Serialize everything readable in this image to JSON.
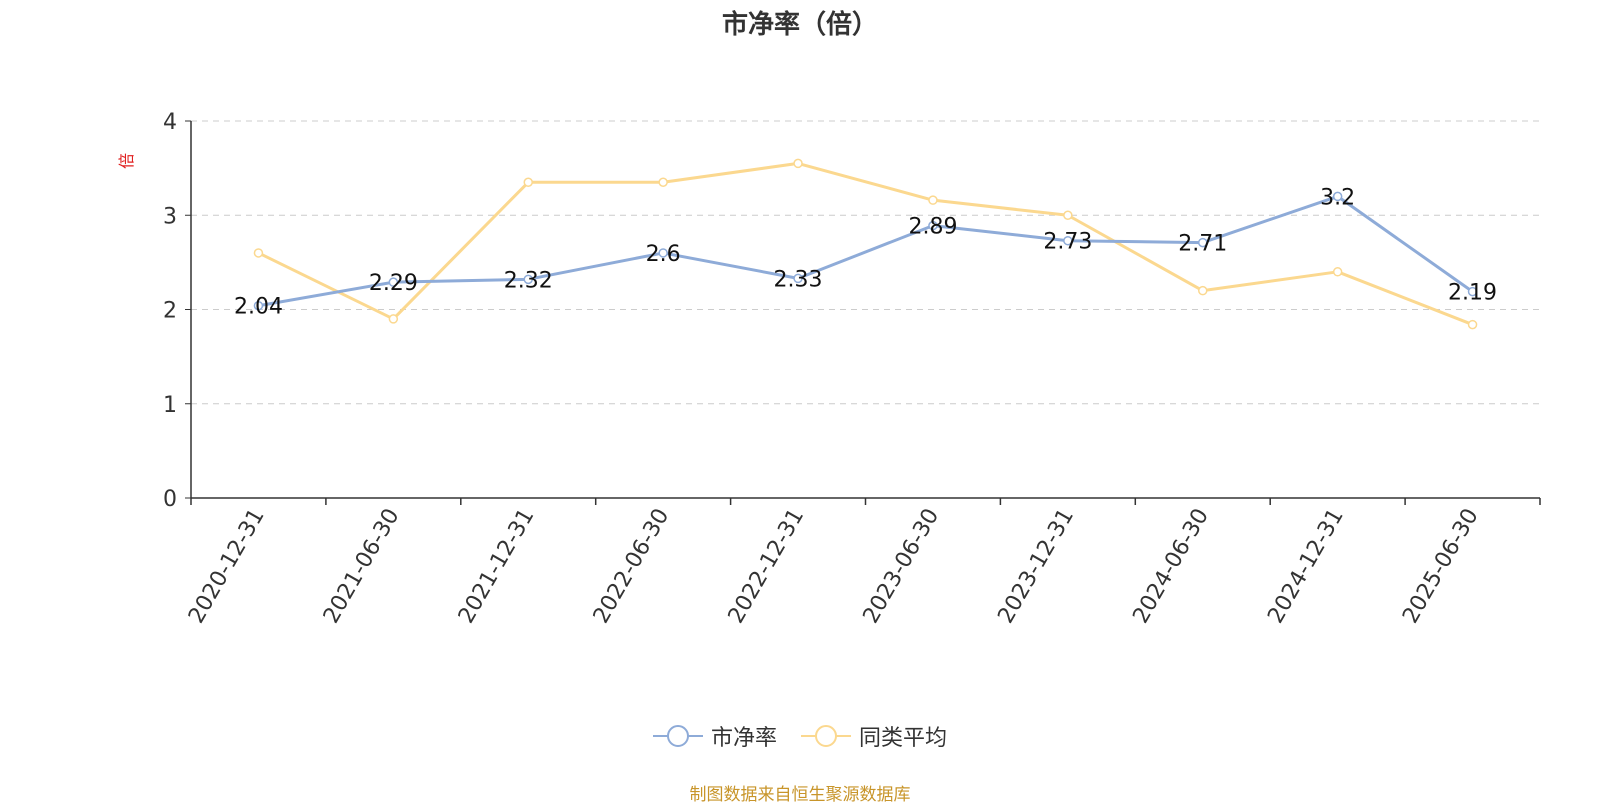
{
  "chart_data": {
    "type": "line",
    "title": "市净率（倍）",
    "ylabel": "倍",
    "xlabel": "",
    "ylim": [
      0,
      4
    ],
    "yticks": [
      0,
      1,
      2,
      3,
      4
    ],
    "grid": true,
    "legend_position": "bottom",
    "categories": [
      "2020-12-31",
      "2021-06-30",
      "2021-12-31",
      "2022-06-30",
      "2022-12-31",
      "2023-06-30",
      "2023-12-31",
      "2024-06-30",
      "2024-12-31",
      "2025-06-30"
    ],
    "series": [
      {
        "name": "市净率",
        "color": "#8eabd8",
        "values": [
          2.04,
          2.29,
          2.32,
          2.6,
          2.33,
          2.89,
          2.73,
          2.71,
          3.2,
          2.19
        ],
        "labels": [
          "2.04",
          "2.29",
          "2.32",
          "2.6",
          "2.33",
          "2.89",
          "2.73",
          "2.71",
          "3.2",
          "2.19"
        ]
      },
      {
        "name": "同类平均",
        "color": "#fbd88f",
        "values": [
          2.6,
          1.9,
          3.35,
          3.35,
          3.55,
          3.16,
          3.0,
          2.2,
          2.4,
          1.84
        ]
      }
    ]
  },
  "source_note": "制图数据来自恒生聚源数据库",
  "colors": {
    "axis": "#333333",
    "grid": "#cccccc",
    "ylabel": "#e02020",
    "source": "#c8952a"
  }
}
